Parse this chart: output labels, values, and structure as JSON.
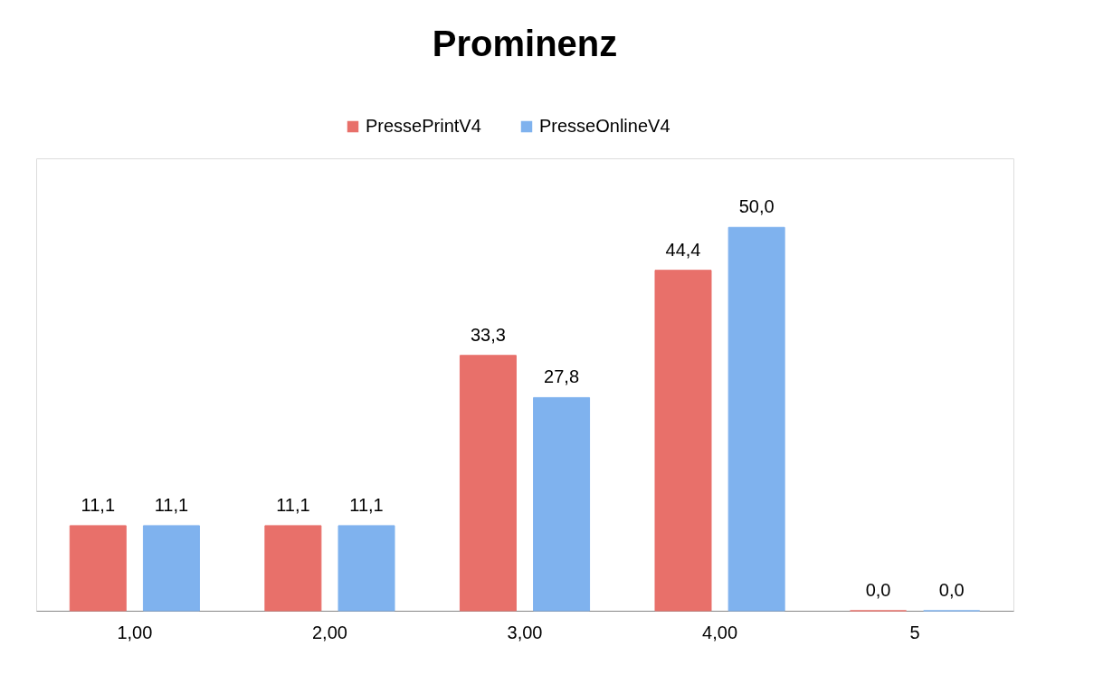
{
  "chart_data": {
    "type": "bar",
    "title": "Prominenz",
    "categories": [
      "1,00",
      "2,00",
      "3,00",
      "4,00",
      "5"
    ],
    "series": [
      {
        "name": "PressePrintV4",
        "color": "#e8706a",
        "values": [
          11.1,
          11.1,
          33.3,
          44.4,
          0.0
        ],
        "value_labels": [
          "11,1",
          "11,1",
          "33,3",
          "44,4",
          "0,0"
        ]
      },
      {
        "name": "PresseOnlineV4",
        "color": "#7fb2ee",
        "values": [
          11.1,
          11.1,
          27.8,
          50.0,
          0.0
        ],
        "value_labels": [
          "11,1",
          "11,1",
          "27,8",
          "50,0",
          "0,0"
        ]
      }
    ],
    "legend": "top",
    "grid": false
  }
}
